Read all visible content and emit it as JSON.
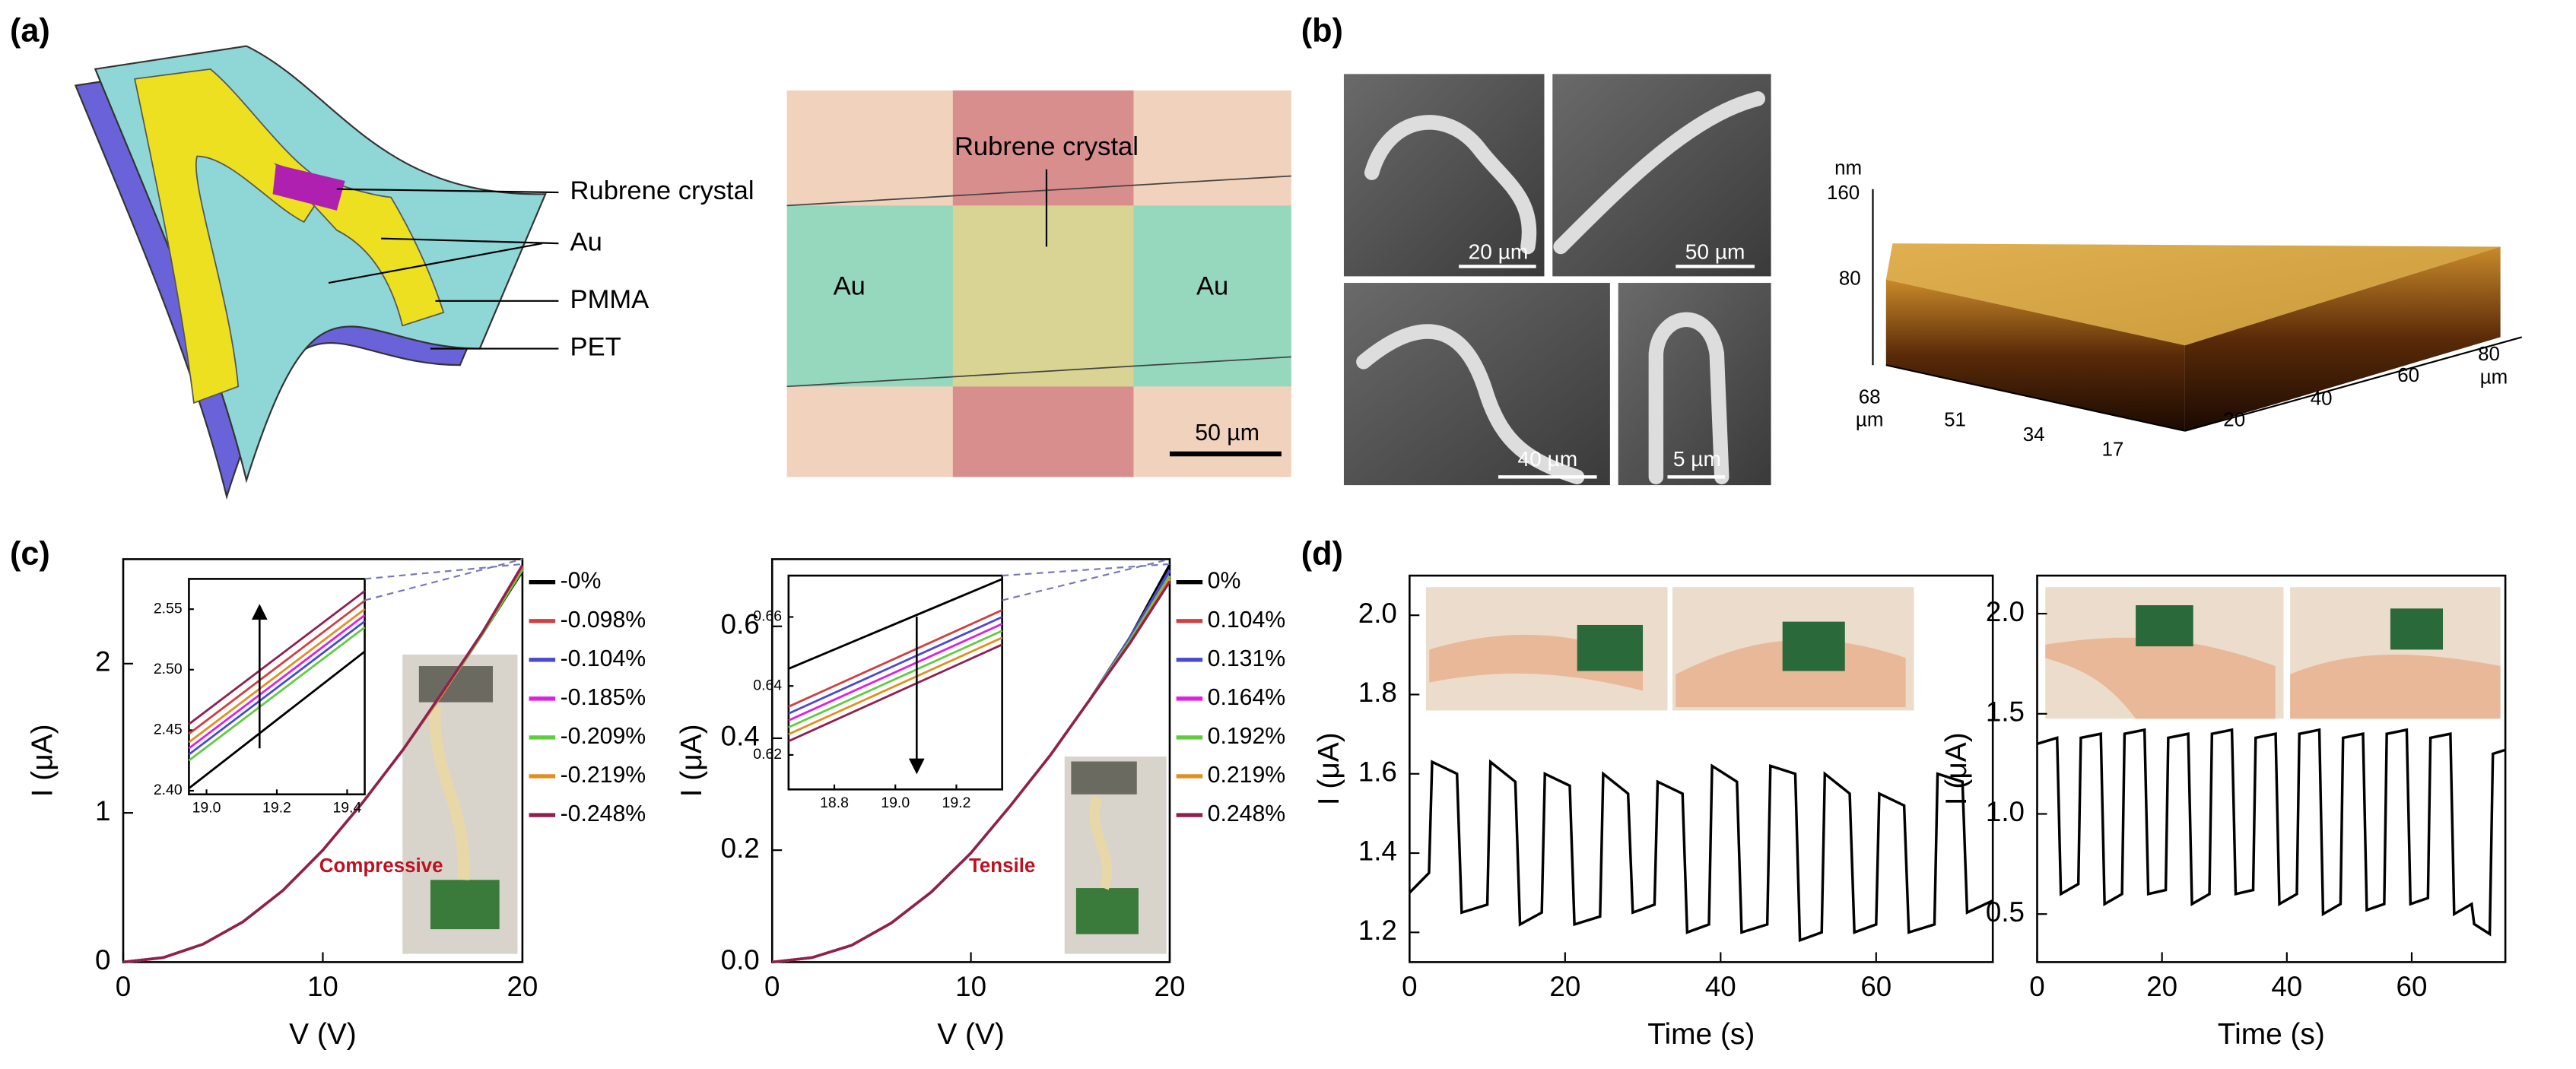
{
  "panel_labels": [
    "(a)",
    "(b)",
    "(c)",
    "(d)"
  ],
  "diagram": {
    "labels": [
      "Rubrene crystal",
      "Au",
      "PMMA",
      "PET"
    ]
  },
  "micrograph": {
    "labels": [
      "Au",
      "Rubrene crystal",
      "Au"
    ],
    "scale_bar": "50 µm"
  },
  "sem": {
    "scale_bars": [
      "20 µm",
      "50 µm",
      "40 µm",
      "5 µm"
    ]
  },
  "afm": {
    "unit": "nm",
    "z_ticks": [
      "160",
      "80"
    ],
    "y_ticks": [
      "68",
      "51",
      "34",
      "17"
    ],
    "y_unit": "µm",
    "x_ticks": [
      "20",
      "40",
      "60",
      "80"
    ],
    "x_unit": "µm"
  },
  "chart_data": [
    {
      "type": "line",
      "xlabel": "V (V)",
      "ylabel": "I (μA)",
      "annotation": "Compressive",
      "xlim": [
        0,
        20
      ],
      "ylim": [
        0,
        2.7
      ],
      "xticks": [
        0,
        10,
        20
      ],
      "yticks": [
        0,
        1,
        2
      ],
      "x": [
        0,
        2,
        4,
        6,
        8,
        10,
        12,
        14,
        16,
        18,
        20
      ],
      "series": [
        {
          "name": "-0%",
          "color": "#000000",
          "values": [
            0,
            0.03,
            0.12,
            0.27,
            0.48,
            0.75,
            1.07,
            1.42,
            1.8,
            2.2,
            2.62
          ]
        },
        {
          "name": "-0.098%",
          "color": "#d04040",
          "values": [
            0,
            0.03,
            0.12,
            0.27,
            0.48,
            0.75,
            1.07,
            1.42,
            1.8,
            2.21,
            2.65
          ]
        },
        {
          "name": "-0.104%",
          "color": "#4a4ad0",
          "values": [
            0,
            0.03,
            0.12,
            0.27,
            0.48,
            0.75,
            1.07,
            1.42,
            1.8,
            2.2,
            2.64
          ]
        },
        {
          "name": "-0.185%",
          "color": "#e020e0",
          "values": [
            0,
            0.03,
            0.12,
            0.27,
            0.48,
            0.75,
            1.07,
            1.42,
            1.8,
            2.2,
            2.64
          ]
        },
        {
          "name": "-0.209%",
          "color": "#60cc40",
          "values": [
            0,
            0.03,
            0.12,
            0.27,
            0.48,
            0.75,
            1.07,
            1.42,
            1.8,
            2.2,
            2.63
          ]
        },
        {
          "name": "-0.219%",
          "color": "#e09020",
          "values": [
            0,
            0.03,
            0.12,
            0.27,
            0.48,
            0.75,
            1.07,
            1.42,
            1.8,
            2.21,
            2.65
          ]
        },
        {
          "name": "-0.248%",
          "color": "#902050",
          "values": [
            0,
            0.03,
            0.12,
            0.27,
            0.48,
            0.75,
            1.07,
            1.42,
            1.81,
            2.21,
            2.66
          ]
        }
      ]
    },
    {
      "type": "line",
      "xlim": [
        18.95,
        19.45
      ],
      "ylim": [
        2.397,
        2.575
      ],
      "xticks": [
        {
          "value": 19,
          "label": "19.0"
        },
        19.2,
        19.4
      ],
      "yticks": [
        {
          "value": 2.4,
          "label": "2.40"
        },
        2.45,
        {
          "value": 2.5,
          "label": "2.50"
        },
        2.55
      ],
      "x": [
        18.95,
        19.45
      ],
      "series": [
        {
          "color": "#000000",
          "values": [
            2.402,
            2.515
          ]
        },
        {
          "color": "#60cc40",
          "values": [
            2.425,
            2.535
          ]
        },
        {
          "color": "#4a4ad0",
          "values": [
            2.43,
            2.54
          ]
        },
        {
          "color": "#e020e0",
          "values": [
            2.435,
            2.545
          ]
        },
        {
          "color": "#e09020",
          "values": [
            2.44,
            2.55
          ]
        },
        {
          "color": "#d04040",
          "values": [
            2.447,
            2.557
          ]
        },
        {
          "color": "#902050",
          "values": [
            2.455,
            2.565
          ]
        }
      ]
    },
    {
      "type": "line",
      "xlabel": "V (V)",
      "ylabel": "I (μA)",
      "annotation": "Tensile",
      "xlim": [
        0,
        20
      ],
      "ylim": [
        0,
        0.72
      ],
      "xticks": [
        0,
        10,
        20
      ],
      "yticks": [
        {
          "value": 0,
          "label": "0.0"
        },
        0.2,
        0.4,
        0.6
      ],
      "x": [
        0,
        2,
        4,
        6,
        8,
        10,
        12,
        14,
        16,
        18,
        20
      ],
      "series": [
        {
          "name": "0%",
          "color": "#000000",
          "values": [
            0,
            0.008,
            0.03,
            0.07,
            0.125,
            0.195,
            0.28,
            0.37,
            0.47,
            0.58,
            0.71
          ]
        },
        {
          "name": "0.104%",
          "color": "#d04040",
          "values": [
            0,
            0.008,
            0.03,
            0.07,
            0.125,
            0.195,
            0.28,
            0.37,
            0.47,
            0.58,
            0.7
          ]
        },
        {
          "name": "0.131%",
          "color": "#4a4ad0",
          "values": [
            0,
            0.008,
            0.03,
            0.07,
            0.125,
            0.195,
            0.28,
            0.37,
            0.47,
            0.58,
            0.7
          ]
        },
        {
          "name": "0.164%",
          "color": "#e020e0",
          "values": [
            0,
            0.008,
            0.03,
            0.07,
            0.125,
            0.195,
            0.28,
            0.37,
            0.47,
            0.575,
            0.69
          ]
        },
        {
          "name": "0.192%",
          "color": "#60cc40",
          "values": [
            0,
            0.008,
            0.03,
            0.07,
            0.125,
            0.195,
            0.28,
            0.37,
            0.47,
            0.575,
            0.69
          ]
        },
        {
          "name": "0.219%",
          "color": "#e09020",
          "values": [
            0,
            0.008,
            0.03,
            0.07,
            0.125,
            0.195,
            0.28,
            0.37,
            0.47,
            0.57,
            0.685
          ]
        },
        {
          "name": "0.248%",
          "color": "#902050",
          "values": [
            0,
            0.008,
            0.03,
            0.07,
            0.125,
            0.195,
            0.28,
            0.37,
            0.47,
            0.57,
            0.68
          ]
        }
      ]
    },
    {
      "type": "line",
      "xlim": [
        18.65,
        19.35
      ],
      "ylim": [
        0.61,
        0.672
      ],
      "xticks": [
        18.8,
        {
          "value": 19,
          "label": "19.0"
        },
        19.2
      ],
      "yticks": [
        0.62,
        0.64,
        0.66
      ],
      "x": [
        18.65,
        19.35
      ],
      "series": [
        {
          "color": "#000000",
          "values": [
            0.645,
            0.671
          ]
        },
        {
          "color": "#d04040",
          "values": [
            0.634,
            0.662
          ]
        },
        {
          "color": "#4a4ad0",
          "values": [
            0.632,
            0.66
          ]
        },
        {
          "color": "#e020e0",
          "values": [
            0.63,
            0.658
          ]
        },
        {
          "color": "#60cc40",
          "values": [
            0.628,
            0.656
          ]
        },
        {
          "color": "#e09020",
          "values": [
            0.626,
            0.654
          ]
        },
        {
          "color": "#902050",
          "values": [
            0.624,
            0.652
          ]
        }
      ]
    },
    {
      "type": "line",
      "xlabel": "Time (s)",
      "ylabel": "I (μA)",
      "xlim": [
        0,
        75
      ],
      "ylim": [
        1.125,
        2.1
      ],
      "xticks": [
        0,
        20,
        40,
        60
      ],
      "yticks": [
        1.2,
        1.4,
        1.6,
        1.8,
        {
          "value": 2,
          "label": "2.0"
        }
      ],
      "x": [
        0,
        1.5,
        2.5,
        2.9,
        6.1,
        6.7,
        10,
        10.4,
        13.6,
        14.2,
        17,
        17.4,
        20.6,
        21.2,
        24.5,
        24.9,
        28.1,
        28.7,
        31.5,
        31.9,
        35.1,
        35.7,
        38.5,
        38.9,
        42.1,
        42.7,
        46,
        46.4,
        49.6,
        50.2,
        53,
        53.4,
        56.6,
        57.2,
        60,
        60.4,
        63.6,
        64.2,
        67.5,
        67.9,
        71.1,
        71.7,
        75
      ],
      "series": [
        {
          "color": "#000000",
          "values": [
            1.3,
            1.33,
            1.35,
            1.63,
            1.6,
            1.25,
            1.27,
            1.63,
            1.58,
            1.22,
            1.25,
            1.6,
            1.57,
            1.22,
            1.24,
            1.6,
            1.55,
            1.25,
            1.27,
            1.58,
            1.55,
            1.2,
            1.22,
            1.62,
            1.58,
            1.2,
            1.22,
            1.62,
            1.6,
            1.18,
            1.2,
            1.6,
            1.55,
            1.2,
            1.22,
            1.55,
            1.52,
            1.2,
            1.22,
            1.6,
            1.58,
            1.25,
            1.28
          ]
        }
      ]
    },
    {
      "type": "line",
      "xlabel": "Time (s)",
      "ylabel": "I (μA)",
      "xlim": [
        0,
        75
      ],
      "ylim": [
        0.26,
        2.19
      ],
      "xticks": [
        0,
        20,
        40,
        60
      ],
      "yticks": [
        0.5,
        {
          "value": 1,
          "label": "1.0"
        },
        1.5,
        {
          "value": 2,
          "label": "2.0"
        }
      ],
      "x": [
        0,
        3.2,
        3.8,
        6.6,
        7,
        10.2,
        10.8,
        13.6,
        14,
        17.2,
        17.8,
        20.6,
        21,
        24.2,
        24.8,
        27.6,
        28,
        31.2,
        31.8,
        34.6,
        35,
        38.2,
        38.8,
        41.6,
        42,
        45.2,
        45.8,
        48.6,
        49,
        52.2,
        52.8,
        55.6,
        56,
        59.2,
        59.8,
        62.6,
        63,
        66.2,
        66.8,
        69.6,
        70,
        72.5,
        73,
        75
      ],
      "series": [
        {
          "color": "#000000",
          "values": [
            1.35,
            1.38,
            0.6,
            0.65,
            1.38,
            1.4,
            0.55,
            0.6,
            1.4,
            1.42,
            0.6,
            0.62,
            1.38,
            1.4,
            0.55,
            0.6,
            1.4,
            1.42,
            0.6,
            0.62,
            1.38,
            1.4,
            0.55,
            0.6,
            1.4,
            1.42,
            0.5,
            0.55,
            1.38,
            1.4,
            0.52,
            0.55,
            1.4,
            1.42,
            0.55,
            0.58,
            1.38,
            1.4,
            0.5,
            0.55,
            0.45,
            0.4,
            1.3,
            1.32
          ]
        }
      ]
    }
  ]
}
